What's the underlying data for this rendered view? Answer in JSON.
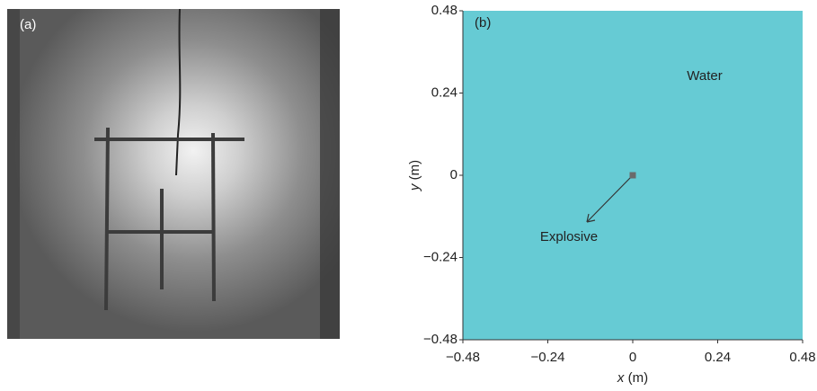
{
  "photo": {
    "label": "(a)"
  },
  "chart_data": {
    "type": "scatter",
    "x_label_var": "x",
    "x_label_unit": " (m)",
    "y_label_var": "y",
    "y_label_unit": " (m)",
    "annotations": [
      "(b)",
      "Water",
      "Explosive"
    ],
    "x": [
      0
    ],
    "values": [
      0
    ],
    "color": "#6b6b6b",
    "fill_color": "#66cbd4",
    "xlim": [
      -0.48,
      0.48
    ],
    "ylim": [
      -0.48,
      0.48
    ],
    "xticks": [
      {
        "value": -0.48,
        "label": "−0.48"
      },
      {
        "value": -0.24,
        "label": "−0.24"
      },
      0,
      0.24,
      0.48
    ],
    "yticks": [
      {
        "value": -0.48,
        "label": "−0.48"
      },
      {
        "value": -0.24,
        "label": "−0.24"
      },
      0,
      0.24,
      0.48
    ]
  }
}
